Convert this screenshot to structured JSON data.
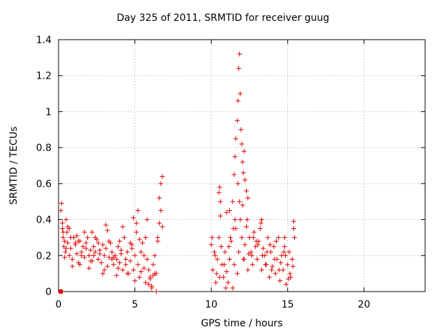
{
  "chart_data": {
    "type": "scatter",
    "title": "Day 325 of 2011, SRMTID for receiver guug",
    "xlabel": "GPS time / hours",
    "ylabel": "SRMTID / TECUs",
    "xlim": [
      0,
      24
    ],
    "ylim": [
      0,
      1.4
    ],
    "xticks": [
      0,
      5,
      10,
      15,
      20
    ],
    "yticks": [
      0,
      0.2,
      0.4,
      0.6,
      0.8,
      1,
      1.2,
      1.4
    ],
    "ytick_labels": [
      "0",
      "0.2",
      "0.4",
      "0.6",
      "0.8",
      "1",
      "1.2",
      "1.4"
    ],
    "grid": true,
    "marker": "plus",
    "color": "#e00000",
    "series": [
      {
        "name": "SRMTID",
        "x": [
          0.15,
          0.2,
          0.25,
          0.3,
          0.35,
          0.4,
          0.45,
          0.5,
          0.55,
          0.6,
          0.7,
          0.8,
          0.9,
          1.0,
          1.1,
          1.2,
          1.3,
          1.4,
          1.5,
          1.6,
          1.7,
          1.8,
          1.9,
          2.0,
          2.1,
          2.2,
          2.3,
          2.4,
          2.5,
          2.6,
          2.7,
          2.8,
          2.9,
          3.0,
          3.1,
          3.2,
          3.3,
          3.4,
          3.5,
          3.6,
          3.7,
          3.8,
          3.9,
          4.0,
          4.1,
          4.2,
          4.3,
          4.4,
          4.5,
          4.6,
          4.7,
          4.8,
          4.9,
          5.0,
          5.1,
          5.2,
          5.3,
          5.4,
          5.5,
          5.6,
          5.7,
          5.8,
          5.9,
          6.0,
          6.1,
          6.2,
          6.3,
          6.4,
          6.5,
          6.6,
          6.7,
          6.8,
          0.3,
          0.5,
          0.7,
          0.9,
          1.2,
          1.5,
          1.8,
          2.1,
          2.4,
          2.7,
          3.0,
          3.3,
          3.6,
          3.9,
          4.2,
          4.5,
          4.8,
          5.1,
          5.4,
          5.7,
          6.0,
          6.3,
          6.6,
          0.4,
          0.8,
          1.1,
          1.4,
          1.7,
          2.0,
          2.3,
          2.6,
          2.9,
          3.2,
          3.5,
          3.8,
          4.1,
          4.4,
          4.7,
          5.0,
          5.3,
          5.6,
          5.9,
          6.2,
          6.5,
          0.25,
          0.6,
          1.3,
          2.2,
          3.1,
          4.0,
          4.9,
          5.2,
          5.8,
          6.1,
          6.4,
          6.7,
          6.8,
          0.2,
          10.0,
          10.1,
          10.2,
          10.3,
          10.4,
          10.5,
          10.6,
          10.7,
          10.8,
          10.9,
          11.0,
          11.1,
          11.2,
          11.3,
          11.4,
          11.5,
          11.6,
          11.7,
          11.8,
          11.9,
          12.0,
          12.1,
          12.2,
          12.3,
          12.4,
          12.5,
          12.6,
          12.7,
          12.8,
          12.9,
          13.0,
          13.1,
          13.2,
          13.3,
          13.4,
          13.5,
          13.6,
          13.7,
          13.8,
          13.9,
          14.0,
          14.1,
          14.2,
          14.3,
          14.4,
          14.5,
          14.6,
          14.7,
          14.8,
          14.9,
          15.0,
          15.1,
          15.2,
          15.3,
          15.4,
          10.05,
          10.35,
          10.65,
          10.95,
          11.25,
          11.55,
          11.85,
          12.15,
          12.45,
          12.75,
          13.05,
          13.35,
          13.65,
          13.95,
          14.25,
          14.55,
          14.85,
          15.15,
          15.45,
          10.25,
          10.55,
          10.85,
          11.15,
          11.45,
          11.75,
          12.05,
          12.35,
          12.65,
          12.95,
          13.25,
          13.55,
          13.85,
          14.15,
          14.45,
          14.75,
          15.05,
          15.35,
          10.5,
          10.55,
          10.6,
          11.0,
          11.2,
          11.4,
          11.5,
          11.55,
          11.6,
          11.7,
          11.75,
          11.8,
          11.85,
          11.9,
          11.95,
          12.0,
          12.05,
          12.1,
          12.15,
          12.2,
          12.3,
          12.4,
          13.3,
          14.8,
          15.4
        ],
        "y": [
          0.45,
          0.49,
          0.38,
          0.3,
          0.25,
          0.28,
          0.22,
          0.4,
          0.33,
          0.27,
          0.2,
          0.24,
          0.18,
          0.3,
          0.26,
          0.21,
          0.16,
          0.28,
          0.22,
          0.25,
          0.19,
          0.27,
          0.3,
          0.2,
          0.23,
          0.17,
          0.25,
          0.22,
          0.29,
          0.18,
          0.21,
          0.16,
          0.26,
          0.2,
          0.24,
          0.14,
          0.19,
          0.27,
          0.22,
          0.15,
          0.2,
          0.18,
          0.25,
          0.16,
          0.21,
          0.12,
          0.3,
          0.18,
          0.22,
          0.1,
          0.17,
          0.26,
          0.12,
          0.2,
          0.33,
          0.15,
          0.08,
          0.22,
          0.27,
          0.13,
          0.05,
          0.18,
          0.12,
          0.08,
          0.03,
          0.15,
          0.2,
          0.1,
          0.28,
          0.38,
          0.45,
          0.36,
          0.33,
          0.24,
          0.35,
          0.14,
          0.31,
          0.2,
          0.24,
          0.17,
          0.3,
          0.23,
          0.12,
          0.28,
          0.19,
          0.13,
          0.36,
          0.1,
          0.24,
          0.38,
          0.11,
          0.3,
          0.07,
          0.1,
          0.52,
          0.19,
          0.3,
          0.27,
          0.15,
          0.33,
          0.13,
          0.2,
          0.27,
          0.1,
          0.34,
          0.18,
          0.09,
          0.23,
          0.15,
          0.27,
          0.06,
          0.29,
          0.2,
          0.04,
          0.09,
          0.3,
          0.35,
          0.36,
          0.28,
          0.33,
          0.37,
          0.28,
          0.41,
          0.45,
          0.4,
          0.02,
          0.0,
          0.6,
          0.64,
          0.0,
          0.26,
          0.12,
          0.22,
          0.05,
          0.18,
          0.3,
          0.42,
          0.15,
          0.08,
          0.22,
          0.11,
          0.05,
          0.18,
          0.28,
          0.02,
          0.15,
          0.35,
          0.1,
          0.22,
          0.4,
          0.3,
          0.18,
          0.26,
          0.36,
          0.12,
          0.3,
          0.22,
          0.15,
          0.33,
          0.25,
          0.18,
          0.28,
          0.35,
          0.12,
          0.24,
          0.2,
          0.15,
          0.3,
          0.08,
          0.22,
          0.14,
          0.25,
          0.1,
          0.18,
          0.3,
          0.06,
          0.2,
          0.12,
          0.25,
          0.04,
          0.15,
          0.22,
          0.08,
          0.18,
          0.35,
          0.3,
          0.1,
          0.25,
          0.02,
          0.3,
          0.4,
          0.5,
          0.18,
          0.21,
          0.3,
          0.26,
          0.2,
          0.22,
          0.12,
          0.28,
          0.16,
          0.2,
          0.1,
          0.3,
          0.2,
          0.08,
          0.15,
          0.25,
          0.35,
          0.6,
          0.48,
          0.4,
          0.2,
          0.28,
          0.38,
          0.15,
          0.26,
          0.18,
          0.12,
          0.22,
          0.07,
          0.14,
          0.55,
          0.58,
          0.5,
          0.44,
          0.45,
          0.5,
          0.65,
          0.75,
          0.85,
          0.95,
          1.06,
          1.24,
          1.32,
          1.1,
          0.9,
          0.82,
          0.72,
          0.66,
          0.78,
          0.62,
          0.56,
          0.52,
          0.4,
          0.3,
          0.39
        ]
      }
    ]
  }
}
